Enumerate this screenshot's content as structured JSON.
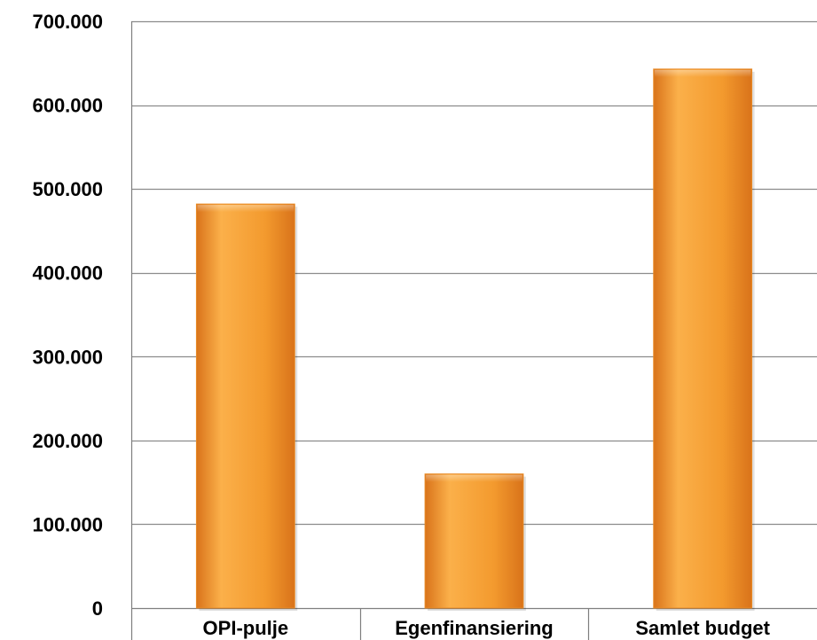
{
  "chart_data": {
    "type": "bar",
    "title": "",
    "xlabel": "",
    "ylabel": "",
    "categories": [
      "OPI-pulje",
      "Egenfinansiering",
      "Samlet budget"
    ],
    "values": [
      482000,
      160000,
      643000
    ],
    "ylim": [
      0,
      700000
    ],
    "yticks": [
      0,
      100000,
      200000,
      300000,
      400000,
      500000,
      600000,
      700000
    ],
    "ytick_labels": [
      "0",
      "100.000",
      "200.000",
      "300.000",
      "400.000",
      "500.000",
      "600.000",
      "700.000"
    ],
    "grid": true,
    "legend": "none",
    "colors": {
      "bar_light": "#FBB04A",
      "bar_main": "#F39A2E",
      "bar_dark": "#D9731A",
      "grid": "#8C8C8C",
      "axis": "#7F7F7F"
    }
  }
}
